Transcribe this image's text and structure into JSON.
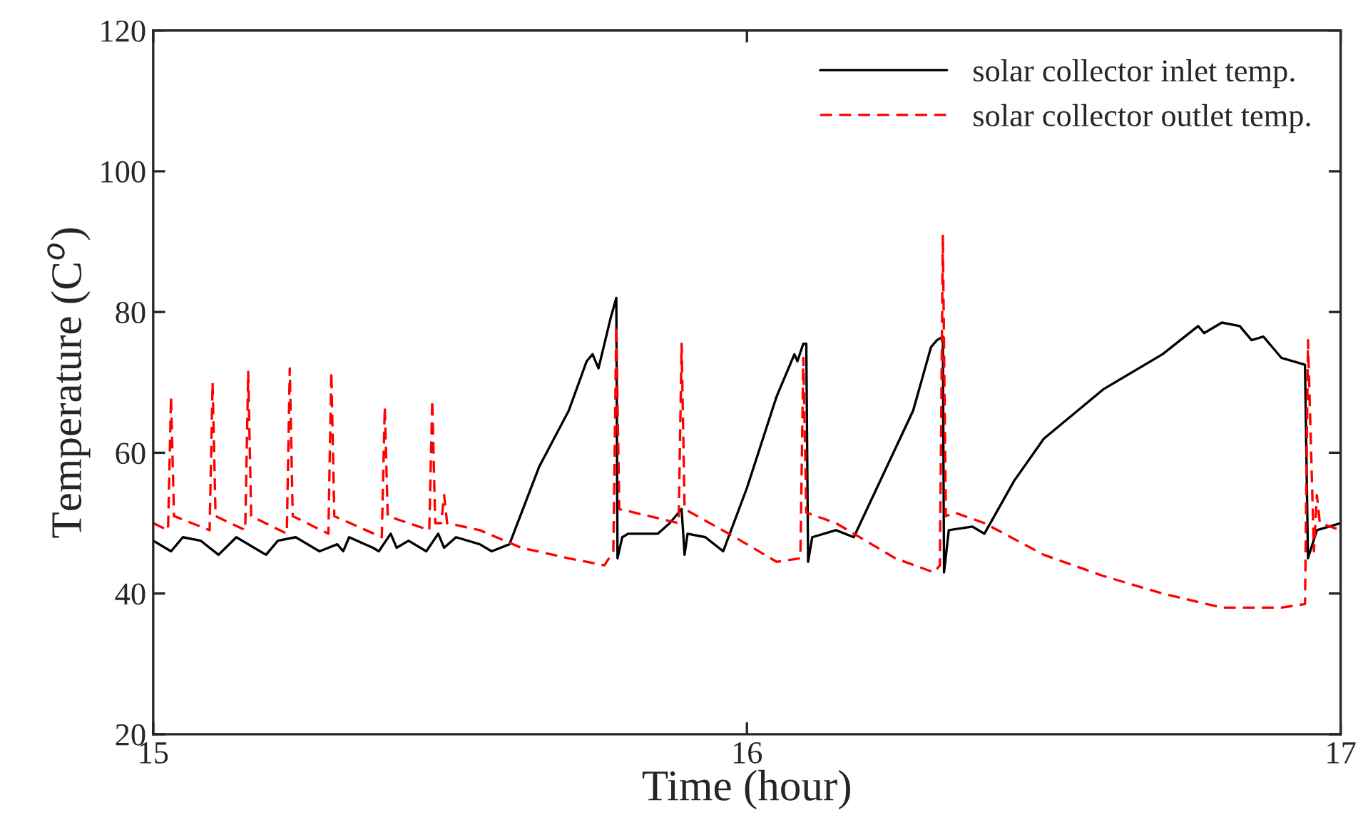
{
  "chart_data": {
    "type": "line",
    "xlabel": "Time (hour)",
    "ylabel": "Temperature (C$^{o}$)",
    "xlim": [
      15,
      17
    ],
    "xticks": [
      15,
      16,
      17
    ],
    "ylim": [
      20,
      120
    ],
    "yticks": [
      20,
      40,
      60,
      80,
      100,
      120
    ],
    "grid": false,
    "legend": "top right",
    "series": [
      {
        "name": "solar collector inlet temp.",
        "color": "#000000",
        "line_style": "solid",
        "x": [
          15.0,
          15.03,
          15.05,
          15.08,
          15.11,
          15.14,
          15.18,
          15.19,
          15.21,
          15.24,
          15.28,
          15.31,
          15.32,
          15.33,
          15.37,
          15.38,
          15.4,
          15.41,
          15.43,
          15.46,
          15.48,
          15.49,
          15.51,
          15.55,
          15.57,
          15.6,
          15.65,
          15.7,
          15.73,
          15.74,
          15.75,
          15.77,
          15.78,
          15.782,
          15.79,
          15.8,
          15.85,
          15.87,
          15.89,
          15.895,
          15.9,
          15.93,
          15.96,
          16.0,
          16.05,
          16.07,
          16.08,
          16.085,
          16.095,
          16.1,
          16.103,
          16.11,
          16.15,
          16.18,
          16.23,
          16.28,
          16.3,
          16.31,
          16.32,
          16.33,
          16.332,
          16.34,
          16.38,
          16.4,
          16.45,
          16.5,
          16.6,
          16.7,
          16.76,
          16.77,
          16.8,
          16.83,
          16.85,
          16.87,
          16.9,
          16.94,
          16.945,
          16.96,
          17.0
        ],
        "values": [
          47.5,
          46,
          48,
          47.5,
          45.5,
          48,
          46,
          45.5,
          47.5,
          48,
          46,
          47,
          46,
          48,
          46.5,
          46,
          48.5,
          46.5,
          47.5,
          46,
          48.5,
          46.5,
          48,
          47,
          46,
          47,
          58,
          66,
          73,
          74,
          72,
          79,
          82,
          45,
          48,
          48.5,
          48.5,
          50,
          52,
          45.5,
          48.5,
          48,
          46,
          55,
          68,
          72,
          74,
          73,
          75.5,
          75.5,
          44.5,
          48,
          49,
          48,
          57,
          66,
          72,
          75,
          76,
          76.5,
          43,
          49,
          49.5,
          48.5,
          56,
          62,
          69,
          74,
          78,
          77,
          78.5,
          78,
          76,
          76.5,
          73.5,
          72.5,
          45,
          49,
          50
        ]
      },
      {
        "name": "solar collector outlet temp.",
        "color": "#ff0000",
        "line_style": "dashed",
        "x": [
          15.0,
          15.025,
          15.03,
          15.035,
          15.095,
          15.1,
          15.105,
          15.155,
          15.16,
          15.165,
          15.225,
          15.23,
          15.235,
          15.295,
          15.3,
          15.305,
          15.385,
          15.39,
          15.395,
          15.465,
          15.47,
          15.475,
          15.485,
          15.49,
          15.495,
          15.55,
          15.62,
          15.7,
          15.76,
          15.775,
          15.78,
          15.785,
          15.885,
          15.89,
          15.895,
          15.98,
          16.05,
          16.09,
          16.095,
          16.1,
          16.15,
          16.25,
          16.315,
          16.325,
          16.33,
          16.335,
          16.35,
          16.4,
          16.5,
          16.6,
          16.7,
          16.8,
          16.9,
          16.94,
          16.945,
          16.955,
          16.96,
          16.965,
          17.0
        ],
        "values": [
          50,
          49,
          68,
          51,
          49,
          70,
          51,
          49,
          71.5,
          51,
          48.5,
          72,
          51,
          48.5,
          71.5,
          51,
          48,
          66.5,
          51,
          49,
          67.5,
          50,
          50,
          54,
          50,
          49,
          46.5,
          45,
          44,
          46,
          78,
          52,
          50,
          75.5,
          52,
          48,
          44.5,
          45,
          73.5,
          51.5,
          50,
          45,
          43,
          44,
          91,
          51,
          51.5,
          50,
          45.5,
          42.5,
          40,
          38,
          38,
          38.5,
          76,
          46,
          54,
          50,
          49
        ]
      }
    ]
  }
}
